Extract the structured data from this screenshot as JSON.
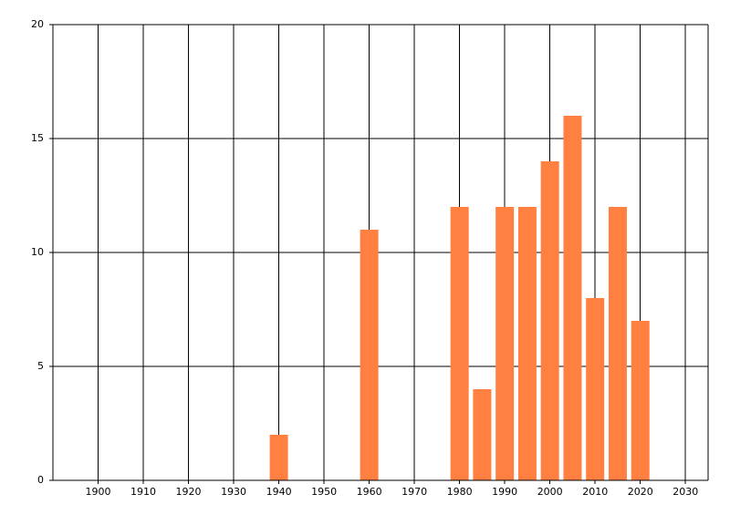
{
  "chart_data": {
    "type": "bar",
    "x": [
      1940,
      1960,
      1980,
      1985,
      1990,
      1995,
      2000,
      2005,
      2010,
      2015,
      2020
    ],
    "values": [
      2,
      11,
      12,
      4,
      12,
      12,
      14,
      16,
      8,
      12,
      7
    ],
    "color": "#ff8040",
    "xlim": [
      1890,
      2035
    ],
    "xticks": [
      1900,
      1910,
      1920,
      1930,
      1940,
      1950,
      1960,
      1970,
      1980,
      1990,
      2000,
      2010,
      2020,
      2030
    ],
    "ylim": [
      0,
      20
    ],
    "yticks": [
      0,
      5,
      10,
      15,
      20
    ],
    "grid": true
  }
}
